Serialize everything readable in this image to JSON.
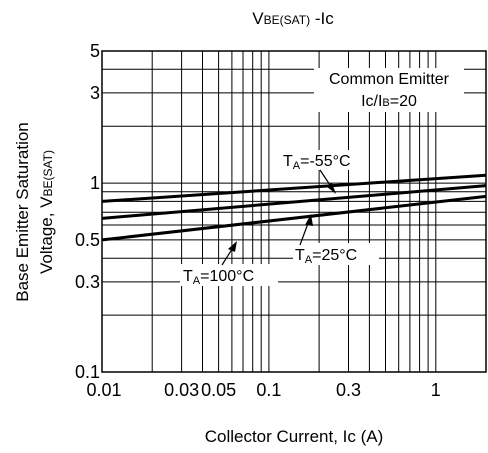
{
  "chart_data": {
    "type": "line",
    "title": "VBE(SAT) -Ic",
    "title_parts": {
      "main": "V",
      "sub": "BE(SAT)",
      "rest": " -Ic"
    },
    "xlabel": "Collector Current, Ic (A)",
    "ylabel_line1": "Base Emitter Saturation",
    "ylabel_line2_main": "Voltage, V",
    "ylabel_line2_sub": "BE(SAT)",
    "x_scale": "log",
    "y_scale": "log",
    "xlim": [
      0.01,
      2
    ],
    "ylim": [
      0.1,
      5
    ],
    "grid": true,
    "x_grid": [
      0.02,
      0.03,
      0.04,
      0.05,
      0.06,
      0.07,
      0.08,
      0.09,
      0.1,
      0.2,
      0.3,
      0.4,
      0.5,
      0.6,
      0.7,
      0.8,
      0.9,
      1,
      2
    ],
    "y_grid": [
      0.2,
      0.3,
      0.4,
      0.5,
      0.6,
      0.7,
      0.8,
      0.9,
      1,
      2,
      3,
      4
    ],
    "x_ticks": [
      {
        "value": 0.01,
        "label": "0.01"
      },
      {
        "value": 0.03,
        "label": "0.03"
      },
      {
        "value": 0.05,
        "label": "0.05"
      },
      {
        "value": 0.1,
        "label": "0.1"
      },
      {
        "value": 0.3,
        "label": "0.3"
      },
      {
        "value": 1,
        "label": "1"
      }
    ],
    "y_ticks": [
      {
        "value": 5,
        "label": "5"
      },
      {
        "value": 3,
        "label": "3"
      },
      {
        "value": 1,
        "label": "1"
      },
      {
        "value": 0.5,
        "label": "0.5"
      },
      {
        "value": 0.3,
        "label": "0.3"
      },
      {
        "value": 0.1,
        "label": "0.1"
      }
    ],
    "series": [
      {
        "name": "TA=-55°C",
        "label_main": "T",
        "label_sub": "A",
        "label_rest": "=-55°C",
        "x": [
          0.01,
          2
        ],
        "y": [
          0.8,
          1.1
        ]
      },
      {
        "name": "TA=25°C",
        "label_main": "T",
        "label_sub": "A",
        "label_rest": "=25°C",
        "x": [
          0.01,
          2
        ],
        "y": [
          0.65,
          0.97
        ]
      },
      {
        "name": "TA=100°C",
        "label_main": "T",
        "label_sub": "A",
        "label_rest": "=100°C",
        "x": [
          0.01,
          2
        ],
        "y": [
          0.5,
          0.85
        ]
      }
    ],
    "annotation": {
      "line1": "Common Emitter",
      "line2_main": "Ic/I",
      "line2_sub": "B",
      "line2_rest": "=20"
    }
  }
}
